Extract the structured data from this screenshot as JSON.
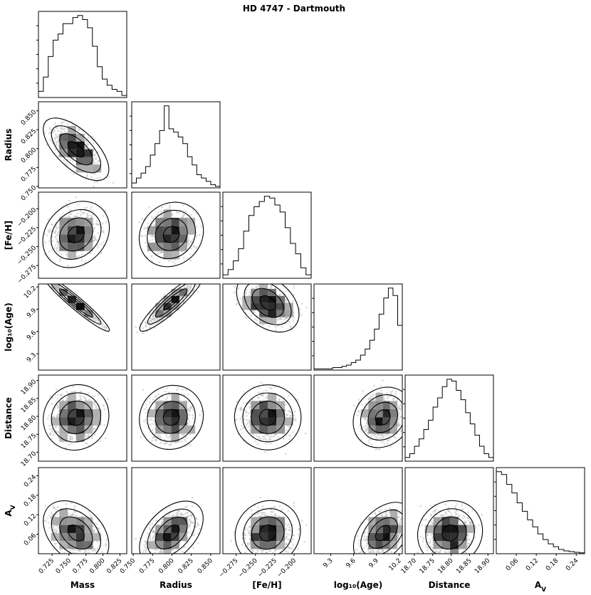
{
  "chart_data": {
    "type": "corner",
    "title": "HD 4747 - Dartmouth",
    "parameters": [
      {
        "label": "Mass",
        "range": [
          0.705,
          0.835
        ],
        "ticks": [
          0.725,
          0.75,
          0.775,
          0.8,
          0.825
        ],
        "tick_labels": [
          "0.725",
          "0.750",
          "0.775",
          "0.800",
          "0.825"
        ],
        "hist": [
          3,
          10,
          20,
          28,
          31,
          36,
          36,
          39,
          40,
          38,
          34,
          25,
          15,
          9,
          6,
          4,
          3,
          1
        ]
      },
      {
        "label": "Radius",
        "range": [
          0.748,
          0.862
        ],
        "ticks": [
          0.75,
          0.775,
          0.8,
          0.825,
          0.85
        ],
        "tick_labels": [
          "0.750",
          "0.775",
          "0.800",
          "0.825",
          "0.850"
        ],
        "hist": [
          3,
          6,
          9,
          13,
          20,
          27,
          35,
          50,
          36,
          34,
          31,
          27,
          19,
          14,
          8,
          6,
          4,
          2,
          1
        ]
      },
      {
        "label": "[Fe/H]",
        "range": [
          -0.292,
          -0.178
        ],
        "ticks": [
          -0.275,
          -0.25,
          -0.225,
          -0.2
        ],
        "tick_labels": [
          "−0.275",
          "−0.250",
          "−0.225",
          "−0.200"
        ],
        "hist": [
          2,
          5,
          10,
          17,
          27,
          36,
          41,
          44,
          47,
          46,
          42,
          38,
          29,
          20,
          14,
          6,
          2
        ]
      },
      {
        "label": "log₁₀(Age)",
        "range": [
          9.08,
          10.24
        ],
        "ticks": [
          9.3,
          9.6,
          9.9,
          10.2
        ],
        "tick_labels": [
          "9.3",
          "9.6",
          "9.9",
          "10.2"
        ],
        "hist": [
          1,
          1,
          1,
          1,
          2,
          2,
          3,
          4,
          6,
          8,
          12,
          17,
          24,
          33,
          45,
          58,
          66,
          60,
          36
        ]
      },
      {
        "label": "Distance",
        "range": [
          18.675,
          18.915
        ],
        "ticks": [
          18.7,
          18.75,
          18.8,
          18.85,
          18.9
        ],
        "tick_labels": [
          "18.70",
          "18.75",
          "18.80",
          "18.85",
          "18.90"
        ],
        "hist": [
          2,
          4,
          8,
          12,
          17,
          22,
          29,
          34,
          40,
          44,
          43,
          38,
          33,
          26,
          20,
          14,
          8,
          4,
          2
        ]
      },
      {
        "label": "A_V",
        "range": [
          0,
          0.265
        ],
        "ticks": [
          0.06,
          0.12,
          0.18,
          0.24
        ],
        "tick_labels": [
          "0.06",
          "0.12",
          "0.18",
          "0.24"
        ],
        "hist": [
          58,
          56,
          49,
          43,
          36,
          30,
          24,
          19,
          14,
          10,
          7,
          5,
          3,
          2,
          1.5,
          1,
          0.6
        ]
      }
    ],
    "pair_correlations": [
      [
        2,
        1,
        -0.62
      ],
      [
        3,
        1,
        0.2
      ],
      [
        3,
        2,
        0.1
      ],
      [
        4,
        1,
        -0.96
      ],
      [
        4,
        2,
        0.9
      ],
      [
        4,
        3,
        -0.3
      ],
      [
        5,
        1,
        0.05
      ],
      [
        5,
        2,
        0.05
      ],
      [
        5,
        3,
        0
      ],
      [
        5,
        4,
        0.1
      ],
      [
        6,
        1,
        -0.35
      ],
      [
        6,
        2,
        0.45
      ],
      [
        6,
        3,
        0.05
      ],
      [
        6,
        4,
        0.4
      ],
      [
        6,
        5,
        0.05
      ]
    ],
    "grid": false,
    "sample_color": "#bdbdbd",
    "contour_color": "#000000"
  }
}
